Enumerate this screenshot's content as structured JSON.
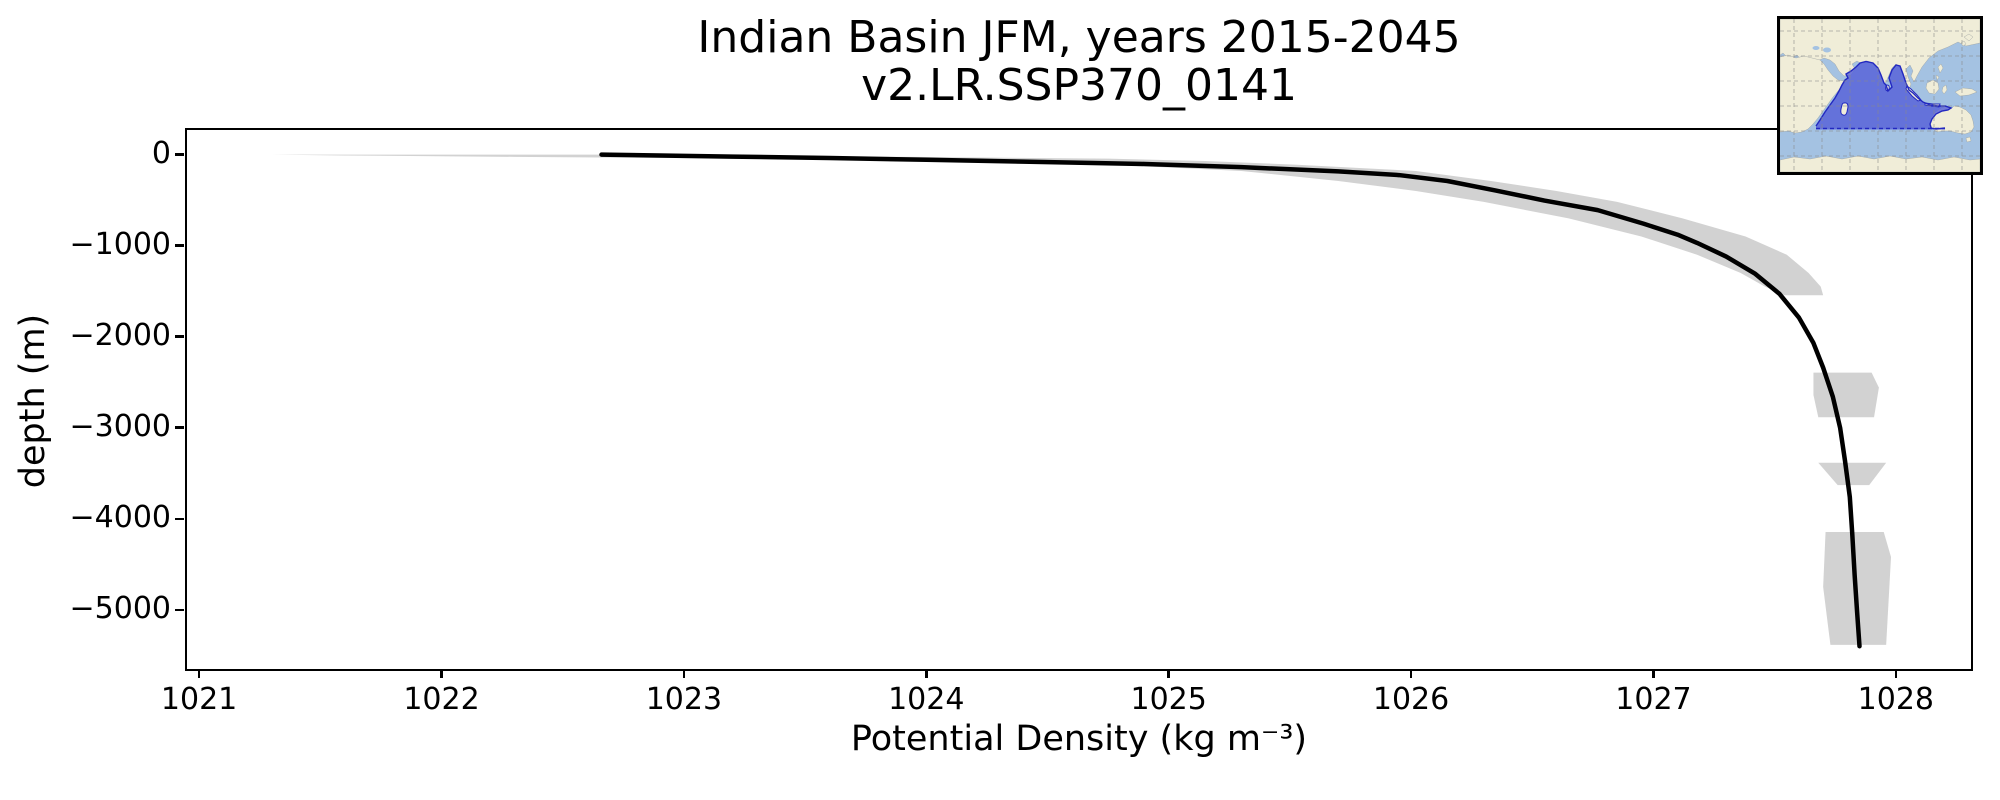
{
  "chart_data": {
    "type": "line",
    "title": "Indian Basin JFM, years 2015-2045",
    "subtitle": "v2.LR.SSP370_0141",
    "xlabel": "Potential Density (kg m⁻³)",
    "ylabel": "depth (m)",
    "xlim": [
      1020.95,
      1028.31
    ],
    "ylim": [
      -5650,
      270
    ],
    "grid": false,
    "legend": "none",
    "xticks": [
      1021,
      1022,
      1023,
      1024,
      1025,
      1026,
      1027,
      1028
    ],
    "xtick_labels": [
      "1021",
      "1022",
      "1023",
      "1024",
      "1025",
      "1026",
      "1027",
      "1028"
    ],
    "yticks": [
      0,
      -1000,
      -2000,
      -3000,
      -4000,
      -5000
    ],
    "ytick_labels": [
      "0",
      "−1000",
      "−2000",
      "−3000",
      "−4000",
      "−5000"
    ],
    "line_color": "#000000",
    "line_width": 4.5,
    "band_color": "#d2d2d2",
    "series": [
      {
        "name": "mean potential density profile",
        "points": [
          [
            1022.66,
            0
          ],
          [
            1022.9,
            -10
          ],
          [
            1023.2,
            -22
          ],
          [
            1023.6,
            -38
          ],
          [
            1024.0,
            -57
          ],
          [
            1024.4,
            -77
          ],
          [
            1024.9,
            -103
          ],
          [
            1025.3,
            -138
          ],
          [
            1025.7,
            -185
          ],
          [
            1025.95,
            -225
          ],
          [
            1026.15,
            -290
          ],
          [
            1026.35,
            -395
          ],
          [
            1026.55,
            -505
          ],
          [
            1026.77,
            -610
          ],
          [
            1026.96,
            -760
          ],
          [
            1027.1,
            -880
          ],
          [
            1027.18,
            -970
          ],
          [
            1027.3,
            -1120
          ],
          [
            1027.42,
            -1310
          ],
          [
            1027.52,
            -1530
          ],
          [
            1027.6,
            -1790
          ],
          [
            1027.66,
            -2070
          ],
          [
            1027.7,
            -2340
          ],
          [
            1027.74,
            -2660
          ],
          [
            1027.77,
            -3000
          ],
          [
            1027.79,
            -3360
          ],
          [
            1027.81,
            -3760
          ],
          [
            1027.82,
            -4160
          ],
          [
            1027.83,
            -4620
          ],
          [
            1027.84,
            -5020
          ],
          [
            1027.85,
            -5400
          ]
        ]
      }
    ],
    "band_profile": [
      [
        0,
        1021.3,
        1022.72
      ],
      [
        -10,
        1021.6,
        1023.1
      ],
      [
        -25,
        1022.3,
        1023.95
      ],
      [
        -45,
        1023.3,
        1024.75
      ],
      [
        -70,
        1024.1,
        1025.15
      ],
      [
        -110,
        1024.75,
        1025.52
      ],
      [
        -180,
        1025.3,
        1026.02
      ],
      [
        -290,
        1025.7,
        1026.33
      ],
      [
        -400,
        1026.02,
        1026.6
      ],
      [
        -520,
        1026.3,
        1026.85
      ],
      [
        -700,
        1026.65,
        1027.12
      ],
      [
        -900,
        1026.95,
        1027.38
      ],
      [
        -1100,
        1027.18,
        1027.55
      ],
      [
        -1300,
        1027.36,
        1027.64
      ],
      [
        -1450,
        1027.46,
        1027.69
      ],
      [
        -1545,
        1027.54,
        1027.7
      ]
    ],
    "band_patches": [
      [
        [
          1027.66,
          -2395
        ],
        [
          1027.9,
          -2395
        ],
        [
          1027.93,
          -2560
        ],
        [
          1027.91,
          -2885
        ],
        [
          1027.68,
          -2885
        ],
        [
          1027.66,
          -2640
        ]
      ],
      [
        [
          1027.68,
          -3385
        ],
        [
          1027.96,
          -3385
        ],
        [
          1027.89,
          -3630
        ],
        [
          1027.76,
          -3630
        ]
      ],
      [
        [
          1027.71,
          -4145
        ],
        [
          1027.95,
          -4145
        ],
        [
          1027.98,
          -4420
        ],
        [
          1027.96,
          -5385
        ],
        [
          1027.73,
          -5385
        ],
        [
          1027.7,
          -4750
        ]
      ]
    ]
  },
  "inset_map": {
    "label": "Indian Ocean basin locator map",
    "ocean_color": "#a4c2e2",
    "land_color": "#f0edd8",
    "coast_color": "#9aa0a0",
    "highlight_fill": "#5560d8",
    "highlight_stroke": "#2228c0",
    "grid_color": "#8a8a8a",
    "border_color": "#000000"
  }
}
